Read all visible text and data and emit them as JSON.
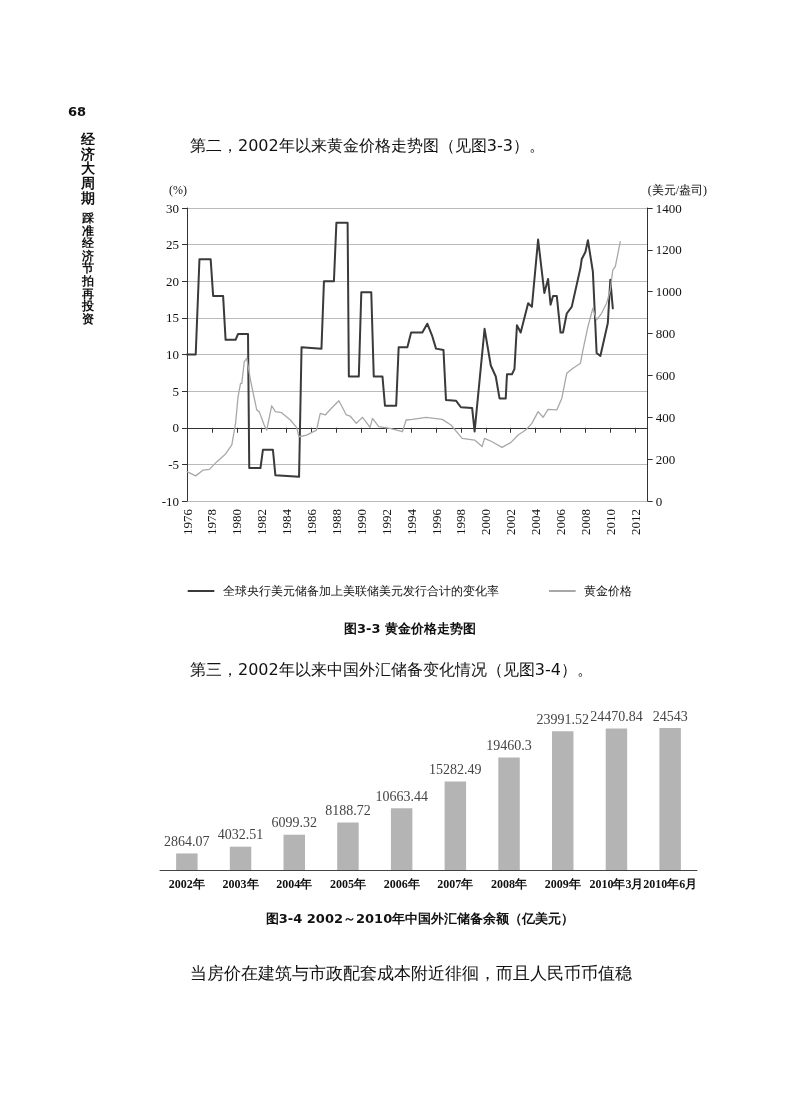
{
  "chart_data": [
    {
      "type": "line",
      "title": "图3-3 黄金价格走势图",
      "ylabel": "(%)",
      "y2label": "(美元/盎司)",
      "annotations": [
        "68",
        "经济大周期",
        "踩准经济节拍再投资",
        "第二，2002年以来黄金价格走势图（见图3-3）。"
      ],
      "series": [
        {
          "name": "全球央行美元储备加上美联储美元发行合计的变化率",
          "color": "#3a3a3a",
          "axis": "y",
          "x": [
            1976.0,
            1976.7,
            1977.0,
            1977.9,
            1978.1,
            1978.9,
            1979.1,
            1979.9,
            1980.1,
            1980.9,
            1981.0,
            1981.9,
            1982.1,
            1982.9,
            1983.1,
            1985.0,
            1985.2,
            1986.8,
            1987.0,
            1987.8,
            1988.0,
            1988.9,
            1989.0,
            1989.8,
            1990.0,
            1990.8,
            1991.0,
            1991.7,
            1991.9,
            1992.8,
            1993.0,
            1993.7,
            1994.0,
            1994.9,
            1995.3,
            1995.7,
            1996.0,
            1996.6,
            1996.8,
            1997.6,
            1998.0,
            1998.9,
            1999.1,
            1999.9,
            2000.4,
            2000.8,
            2001.1,
            2001.6,
            2001.7,
            2002.1,
            2002.3,
            2002.5,
            2002.8,
            2003.4,
            2003.7,
            2004.2,
            2004.7,
            2005.0,
            2005.2,
            2005.4,
            2005.7,
            2006.0,
            2006.2,
            2006.5,
            2006.9,
            2007.6,
            2007.7,
            2008.0,
            2008.2,
            2008.6,
            2008.9,
            2009.2,
            2009.8,
            2010.0,
            2010.2
          ],
          "values": [
            10,
            10,
            23,
            23,
            18,
            18,
            12,
            12,
            12.8,
            12.8,
            -5.5,
            -5.5,
            -3,
            -3,
            -6.5,
            -6.7,
            11,
            10.8,
            20,
            20,
            28,
            28,
            7,
            7,
            18.5,
            18.5,
            7,
            7,
            3,
            3,
            11,
            11,
            13,
            13,
            14.2,
            12.5,
            10.8,
            10.6,
            3.8,
            3.7,
            2.8,
            2.7,
            -0.5,
            13.5,
            8.5,
            7,
            4,
            4,
            7.3,
            7.3,
            8,
            14,
            13,
            17,
            16.5,
            25.7,
            18.4,
            20.3,
            16.8,
            18,
            18,
            13,
            13,
            15.6,
            16.5,
            21.8,
            23,
            24,
            25.6,
            21.3,
            10.2,
            9.8,
            14.3,
            20.2,
            16.3
          ]
        },
        {
          "name": "黄金价格",
          "color": "#a8a8a8",
          "axis": "y2",
          "x": [
            1976.0,
            1976.7,
            1977.3,
            1977.8,
            1978.4,
            1979.1,
            1979.6,
            1979.9,
            1980.1,
            1980.3,
            1980.4,
            1980.6,
            1980.8,
            1981.1,
            1981.6,
            1981.8,
            1982.2,
            1982.4,
            1982.8,
            1983.1,
            1983.6,
            1984.3,
            1984.8,
            1985.0,
            1985.6,
            1986.4,
            1986.7,
            1987.1,
            1987.6,
            1988.2,
            1988.8,
            1989.1,
            1989.6,
            1990.1,
            1990.7,
            1990.9,
            1991.4,
            1992.3,
            1993.3,
            1993.6,
            1994.1,
            1995.2,
            1996.5,
            1997.2,
            1998.1,
            1999.1,
            1999.7,
            1999.9,
            2000.5,
            2001.3,
            2002.0,
            2002.6,
            2003.2,
            2003.7,
            2004.2,
            2004.6,
            2005.0,
            2005.7,
            2006.1,
            2006.5,
            2007.0,
            2007.6,
            2007.8,
            2008.2,
            2008.6,
            2008.9,
            2009.3,
            2009.7,
            2010.0,
            2010.2,
            2010.4,
            2010.8
          ],
          "values": [
            140,
            120,
            148,
            151,
            188,
            225,
            268,
            371,
            498,
            562,
            562,
            666,
            682,
            578,
            435,
            427,
            363,
            339,
            455,
            427,
            422,
            387,
            352,
            307,
            315,
            339,
            419,
            411,
            443,
            479,
            411,
            406,
            371,
            400,
            352,
            395,
            355,
            347,
            331,
            387,
            390,
            400,
            390,
            363,
            299,
            291,
            260,
            299,
            283,
            256,
            279,
            315,
            339,
            371,
            427,
            400,
            438,
            435,
            490,
            610,
            634,
            658,
            721,
            833,
            921,
            865,
            897,
            945,
            1008,
            1104,
            1120,
            1239
          ]
        }
      ],
      "xlim": [
        1976,
        2013
      ],
      "xticks": [
        1976,
        1978,
        1980,
        1982,
        1984,
        1986,
        1988,
        1990,
        1992,
        1994,
        1996,
        1998,
        2000,
        2002,
        2004,
        2006,
        2008,
        2010,
        2012
      ],
      "ylim": [
        -10,
        30
      ],
      "yticks": [
        -10,
        -5,
        0,
        5,
        10,
        15,
        20,
        25,
        30
      ],
      "y2lim": [
        0,
        1400
      ],
      "y2ticks": [
        0,
        200,
        400,
        600,
        800,
        1000,
        1200,
        1400
      ],
      "grid": "y",
      "legend": "bottom",
      "marker": "none",
      "line_style": "solid"
    },
    {
      "type": "bar",
      "title": "图3-4 2002～2010年中国外汇储备余额（亿美元）",
      "annotations": [
        "第三，2002年以来中国外汇储备变化情况（见图3-4）。",
        "当房价在建筑与市政配套成本附近徘徊，而且人民币币值稳"
      ],
      "categories": [
        "2002年",
        "2003年",
        "2004年",
        "2005年",
        "2006年",
        "2007年",
        "2008年",
        "2009年",
        "2010年3月",
        "2010年6月"
      ],
      "values": [
        2864.07,
        4032.51,
        6099.32,
        8188.72,
        10663.44,
        15282.49,
        19460.3,
        23991.52,
        24470.84,
        24543
      ],
      "color": "#b4b4b4",
      "data_labels": true,
      "grid": false,
      "legend": false
    }
  ]
}
